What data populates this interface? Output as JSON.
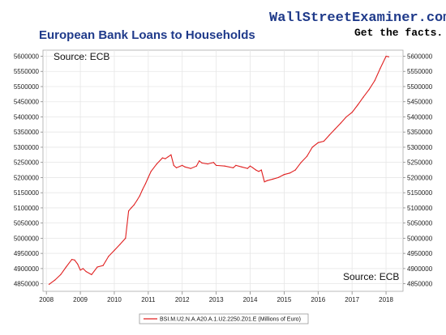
{
  "brand": {
    "name": "WallStreetExaminer.com",
    "tagline": "Get the facts."
  },
  "colors": {
    "series": "#e02020",
    "title": "#1f3a8a",
    "grid": "#e6e6e6",
    "axis": "#888888"
  },
  "chart_data": {
    "type": "line",
    "title": "European Bank Loans to Households",
    "annotations": [
      "Source: ECB",
      "Source: ECB"
    ],
    "xlabel": "",
    "ylabel": "",
    "x_ticks": [
      "2008",
      "2009",
      "2010",
      "2011",
      "2012",
      "2013",
      "2014",
      "2015",
      "2016",
      "2017",
      "2018"
    ],
    "y_ticks_left": [
      "4850000",
      "4900000",
      "4950000",
      "5000000",
      "5050000",
      "5100000",
      "5150000",
      "5200000",
      "5250000",
      "5300000",
      "5350000",
      "5400000",
      "5450000",
      "5500000",
      "5550000",
      "5600000"
    ],
    "y_ticks_right": [
      "4850000",
      "4900000",
      "4950000",
      "5000000",
      "5050000",
      "5100000",
      "5150000",
      "5200000",
      "5250000",
      "5300000",
      "5350000",
      "5400000",
      "5450000",
      "5500000",
      "5550000",
      "5600000"
    ],
    "xlim": [
      2007.9,
      2018.5
    ],
    "ylim": [
      4825000,
      5620000
    ],
    "grid": true,
    "legend_position": "bottom",
    "series": [
      {
        "name": "BSI.M.U2.N.A.A20.A.1.U2.2250.Z01.E (Millions of Euro)",
        "x": [
          2008.08,
          2008.25,
          2008.42,
          2008.58,
          2008.75,
          2008.83,
          2008.92,
          2009.0,
          2009.08,
          2009.17,
          2009.33,
          2009.5,
          2009.67,
          2009.75,
          2009.83,
          2010.0,
          2010.17,
          2010.33,
          2010.42,
          2010.5,
          2010.58,
          2010.67,
          2010.75,
          2010.83,
          2010.92,
          2011.0,
          2011.08,
          2011.25,
          2011.42,
          2011.5,
          2011.58,
          2011.67,
          2011.75,
          2011.83,
          2012.0,
          2012.08,
          2012.25,
          2012.42,
          2012.5,
          2012.58,
          2012.75,
          2012.92,
          2013.0,
          2013.25,
          2013.5,
          2013.58,
          2013.75,
          2013.92,
          2014.0,
          2014.08,
          2014.17,
          2014.25,
          2014.33,
          2014.42,
          2014.5,
          2014.67,
          2014.83,
          2015.0,
          2015.17,
          2015.33,
          2015.5,
          2015.67,
          2015.83,
          2016.0,
          2016.17,
          2016.33,
          2016.5,
          2016.67,
          2016.83,
          2017.0,
          2017.17,
          2017.33,
          2017.5,
          2017.67,
          2017.83,
          2018.0,
          2018.08
        ],
        "values": [
          4848000,
          4862000,
          4880000,
          4905000,
          4930000,
          4928000,
          4915000,
          4895000,
          4900000,
          4890000,
          4880000,
          4905000,
          4910000,
          4925000,
          4940000,
          4960000,
          4980000,
          5000000,
          5090000,
          5100000,
          5110000,
          5125000,
          5140000,
          5160000,
          5180000,
          5200000,
          5220000,
          5245000,
          5265000,
          5262000,
          5268000,
          5275000,
          5240000,
          5232000,
          5240000,
          5235000,
          5230000,
          5238000,
          5255000,
          5248000,
          5245000,
          5250000,
          5240000,
          5238000,
          5232000,
          5240000,
          5235000,
          5230000,
          5238000,
          5232000,
          5225000,
          5220000,
          5225000,
          5186000,
          5190000,
          5195000,
          5200000,
          5210000,
          5215000,
          5225000,
          5250000,
          5270000,
          5300000,
          5315000,
          5320000,
          5340000,
          5360000,
          5380000,
          5400000,
          5415000,
          5440000,
          5465000,
          5490000,
          5520000,
          5560000,
          5600000,
          5598000
        ]
      }
    ]
  }
}
